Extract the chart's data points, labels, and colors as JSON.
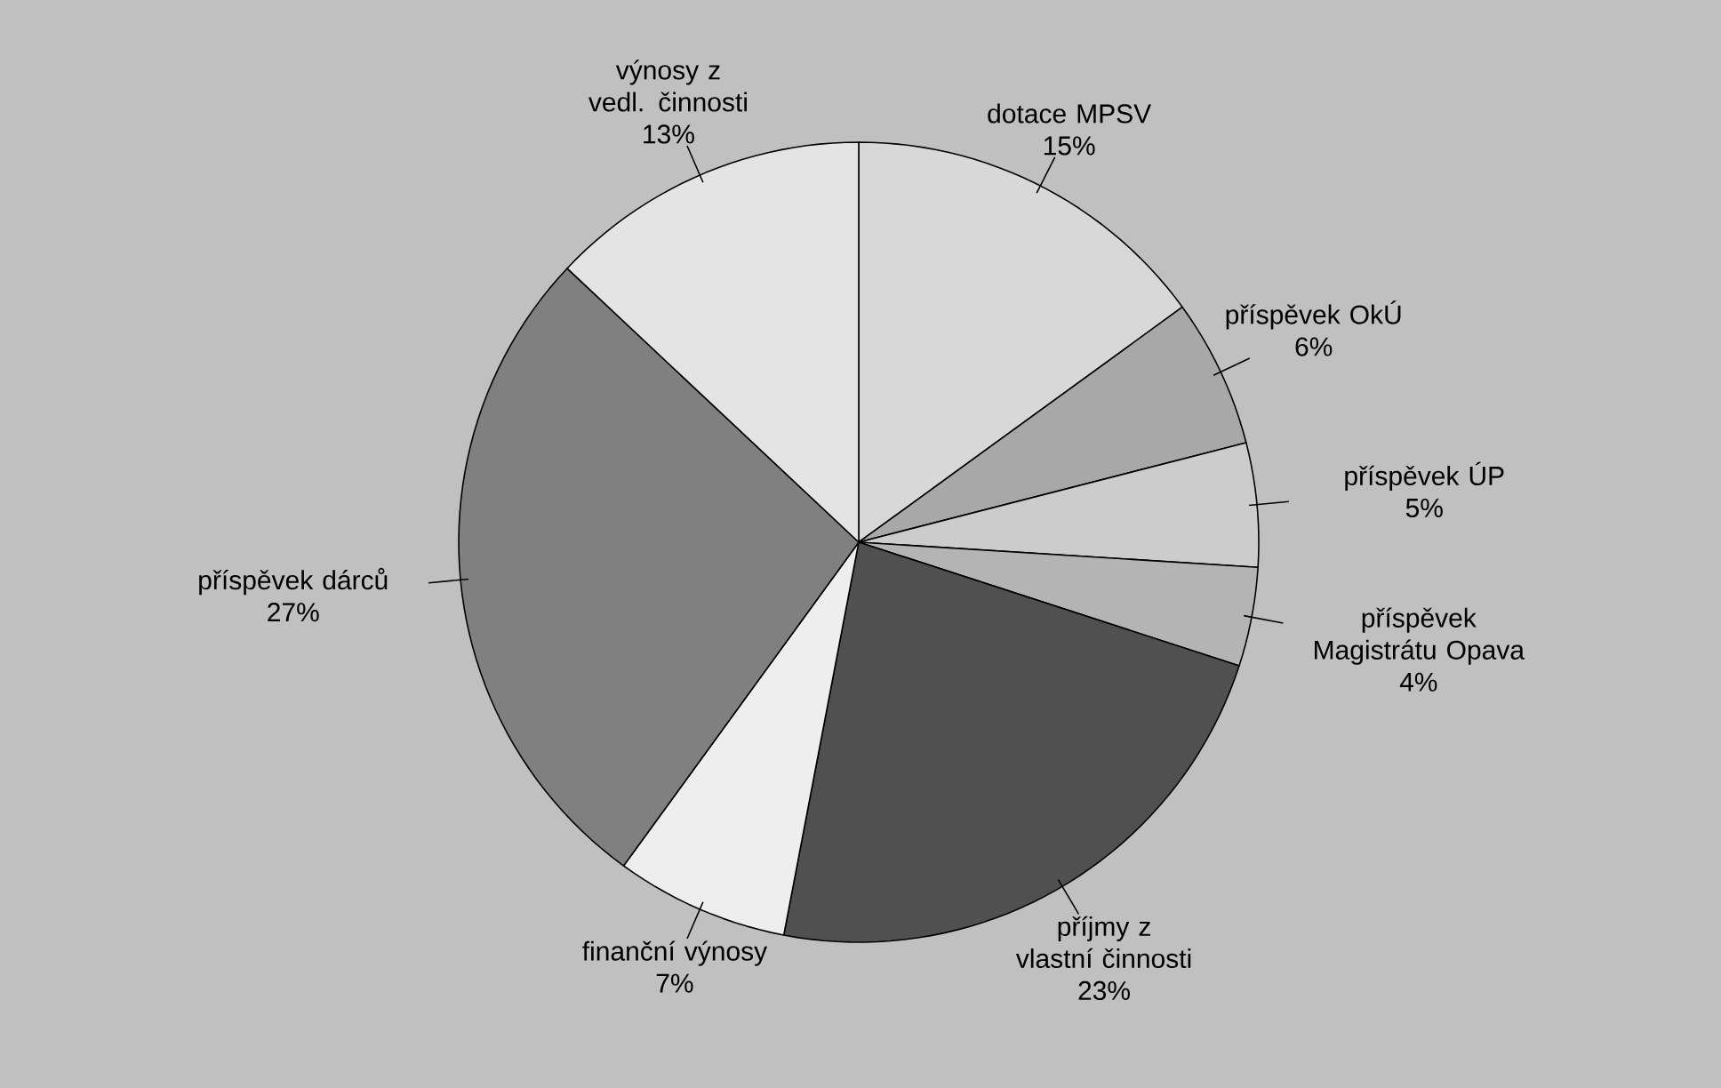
{
  "chart_data": {
    "type": "pie",
    "categories": [
      "dotace MPSV",
      "příspěvek OkÚ",
      "příspěvek ÚP",
      "příspěvek Magistrátu Opava",
      "příjmy z vlastní činnosti",
      "finanční výnosy",
      "příspěvek dárců",
      "výnosy z vedl. činnosti"
    ],
    "values": [
      15,
      6,
      5,
      4,
      23,
      7,
      27,
      13
    ],
    "value_labels": [
      "15%",
      "6%",
      "5%",
      "4%",
      "23%",
      "7%",
      "27%",
      "13%"
    ],
    "colors": [
      "#d8d8d8",
      "#a8a8a8",
      "#cccccc",
      "#b4b4b4",
      "#505050",
      "#eeeeee",
      "#808080",
      "#e4e4e4"
    ]
  }
}
